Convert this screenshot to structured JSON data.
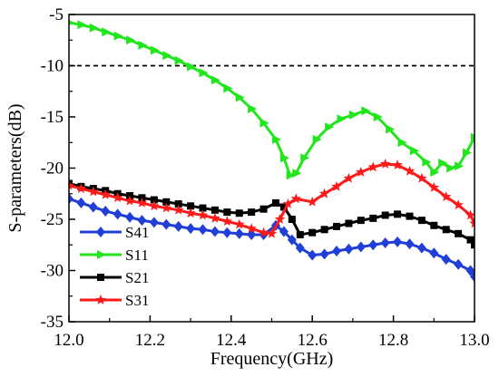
{
  "chart_data": {
    "type": "line",
    "title": "",
    "xlabel": "Frequency(GHz)",
    "ylabel": "S-parameters(dB)",
    "xlim": [
      12.0,
      13.0
    ],
    "ylim": [
      -35,
      -5
    ],
    "x_ticks": [
      "12.0",
      "12.2",
      "12.4",
      "12.6",
      "12.8",
      "13.0"
    ],
    "y_ticks": [
      "-5",
      "-10",
      "-15",
      "-20",
      "-25",
      "-30",
      "-35"
    ],
    "grid": false,
    "legend_position": "bottom-left",
    "reference_line": {
      "y": -10,
      "style": "dashed",
      "color": "#000000"
    },
    "series": [
      {
        "name": "S41",
        "color": "#1f3fd6",
        "marker": "diamond",
        "x": [
          12.0,
          12.03,
          12.06,
          12.09,
          12.12,
          12.15,
          12.18,
          12.21,
          12.24,
          12.27,
          12.3,
          12.33,
          12.36,
          12.39,
          12.42,
          12.45,
          12.48,
          12.51,
          12.53,
          12.55,
          12.57,
          12.6,
          12.63,
          12.66,
          12.69,
          12.72,
          12.75,
          12.78,
          12.81,
          12.84,
          12.87,
          12.9,
          12.93,
          12.96,
          12.99,
          13.0
        ],
        "values": [
          -23.0,
          -23.4,
          -23.8,
          -24.2,
          -24.5,
          -24.8,
          -25.1,
          -25.3,
          -25.5,
          -25.7,
          -25.9,
          -26.0,
          -26.2,
          -26.3,
          -26.4,
          -26.5,
          -26.5,
          -25.6,
          -26.2,
          -27.0,
          -27.8,
          -28.5,
          -28.4,
          -28.1,
          -27.9,
          -27.7,
          -27.5,
          -27.3,
          -27.2,
          -27.4,
          -27.8,
          -28.3,
          -28.9,
          -29.4,
          -30.0,
          -30.6
        ]
      },
      {
        "name": "S11",
        "color": "#22e61c",
        "marker": "triangle-right",
        "x": [
          12.0,
          12.03,
          12.06,
          12.09,
          12.12,
          12.15,
          12.18,
          12.21,
          12.24,
          12.27,
          12.3,
          12.33,
          12.36,
          12.39,
          12.42,
          12.45,
          12.48,
          12.51,
          12.53,
          12.545,
          12.56,
          12.58,
          12.61,
          12.64,
          12.67,
          12.7,
          12.73,
          12.76,
          12.79,
          12.82,
          12.85,
          12.88,
          12.9,
          12.92,
          12.94,
          12.96,
          12.98,
          13.0
        ],
        "values": [
          -5.8,
          -6.0,
          -6.3,
          -6.7,
          -7.1,
          -7.5,
          -8.0,
          -8.5,
          -9.0,
          -9.5,
          -10.1,
          -10.7,
          -11.4,
          -12.2,
          -13.1,
          -14.2,
          -15.6,
          -17.2,
          -19.0,
          -20.7,
          -20.5,
          -19.0,
          -17.2,
          -16.0,
          -15.2,
          -14.8,
          -14.4,
          -15.0,
          -16.2,
          -17.5,
          -18.3,
          -19.4,
          -20.4,
          -19.5,
          -20.0,
          -19.8,
          -18.5,
          -17.0
        ]
      },
      {
        "name": "S21",
        "color": "#000000",
        "marker": "square",
        "x": [
          12.0,
          12.03,
          12.06,
          12.09,
          12.12,
          12.15,
          12.18,
          12.21,
          12.24,
          12.27,
          12.3,
          12.33,
          12.36,
          12.39,
          12.42,
          12.45,
          12.48,
          12.51,
          12.53,
          12.55,
          12.57,
          12.6,
          12.63,
          12.66,
          12.69,
          12.72,
          12.75,
          12.78,
          12.81,
          12.84,
          12.87,
          12.9,
          12.93,
          12.96,
          12.99,
          13.0
        ],
        "values": [
          -21.5,
          -21.8,
          -22.0,
          -22.2,
          -22.5,
          -22.7,
          -22.9,
          -23.1,
          -23.3,
          -23.5,
          -23.7,
          -23.9,
          -24.1,
          -24.3,
          -24.4,
          -24.3,
          -24.0,
          -23.4,
          -23.8,
          -25.0,
          -26.5,
          -26.3,
          -26.0,
          -25.7,
          -25.4,
          -25.1,
          -24.9,
          -24.6,
          -24.5,
          -24.7,
          -25.1,
          -25.6,
          -26.0,
          -26.4,
          -27.0,
          -27.5
        ]
      },
      {
        "name": "S31",
        "color": "#ff1a1a",
        "marker": "star",
        "x": [
          12.0,
          12.03,
          12.06,
          12.09,
          12.12,
          12.15,
          12.18,
          12.21,
          12.24,
          12.27,
          12.3,
          12.33,
          12.36,
          12.39,
          12.42,
          12.45,
          12.48,
          12.5,
          12.52,
          12.54,
          12.56,
          12.6,
          12.63,
          12.66,
          12.69,
          12.72,
          12.75,
          12.78,
          12.81,
          12.84,
          12.87,
          12.9,
          12.93,
          12.96,
          12.99,
          13.0
        ],
        "values": [
          -21.7,
          -22.0,
          -22.3,
          -22.6,
          -22.9,
          -23.2,
          -23.4,
          -23.7,
          -23.9,
          -24.1,
          -24.4,
          -24.6,
          -24.9,
          -25.2,
          -25.5,
          -25.9,
          -26.3,
          -26.4,
          -25.0,
          -23.5,
          -23.0,
          -23.3,
          -22.5,
          -21.8,
          -21.0,
          -20.4,
          -19.9,
          -19.6,
          -19.7,
          -20.3,
          -21.0,
          -21.9,
          -22.8,
          -23.6,
          -24.6,
          -25.4
        ]
      }
    ]
  }
}
